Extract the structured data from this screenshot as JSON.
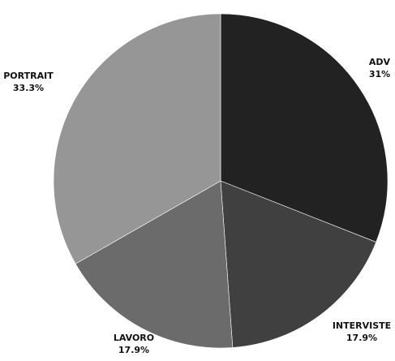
{
  "chart_data": {
    "type": "pie",
    "title": "",
    "start_angle_deg": 0,
    "direction": "clockwise",
    "slices": [
      {
        "label": "ADV",
        "value": 31,
        "display": "31%",
        "color": "#222222"
      },
      {
        "label": "INTERVISTE",
        "value": 17.9,
        "display": "17.9%",
        "color": "#404040"
      },
      {
        "label": "LAVORO",
        "value": 17.9,
        "display": "17.9%",
        "color": "#6b6b6b"
      },
      {
        "label": "PORTRAIT",
        "value": 33.3,
        "display": "33.3%",
        "color": "#969696"
      }
    ]
  }
}
